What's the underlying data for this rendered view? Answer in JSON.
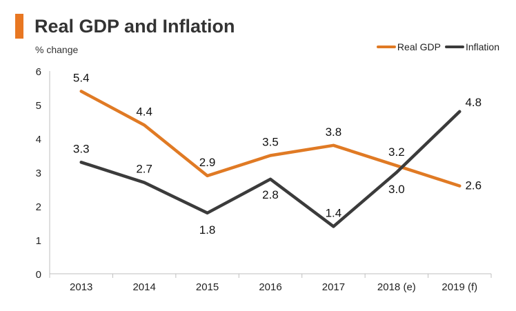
{
  "colors": {
    "accent": "#e87722",
    "gdp": "#e07a24",
    "inflation": "#3b3b3b",
    "axis": "#bfbfbf"
  },
  "chart_data": {
    "type": "line",
    "title": "Real GDP and Inflation",
    "ylabel": "% change",
    "xlabel": "",
    "categories": [
      "2013",
      "2014",
      "2015",
      "2016",
      "2017",
      "2018 (e)",
      "2019 (f)"
    ],
    "ylim": [
      0,
      6
    ],
    "yticks": [
      "0",
      "1",
      "2",
      "3",
      "4",
      "5",
      "6"
    ],
    "grid": false,
    "legend_position": "top-right",
    "series": [
      {
        "name": "Real GDP",
        "values": [
          5.4,
          4.4,
          2.9,
          3.5,
          3.8,
          3.2,
          2.6
        ],
        "labels": [
          "5.4",
          "4.4",
          "2.9",
          "3.5",
          "3.8",
          "3.2",
          "2.6"
        ]
      },
      {
        "name": "Inflation",
        "values": [
          3.3,
          2.7,
          1.8,
          2.8,
          1.4,
          3.0,
          4.8
        ],
        "labels": [
          "3.3",
          "2.7",
          "1.8",
          "2.8",
          "1.4",
          "3.0",
          "4.8"
        ]
      }
    ]
  }
}
